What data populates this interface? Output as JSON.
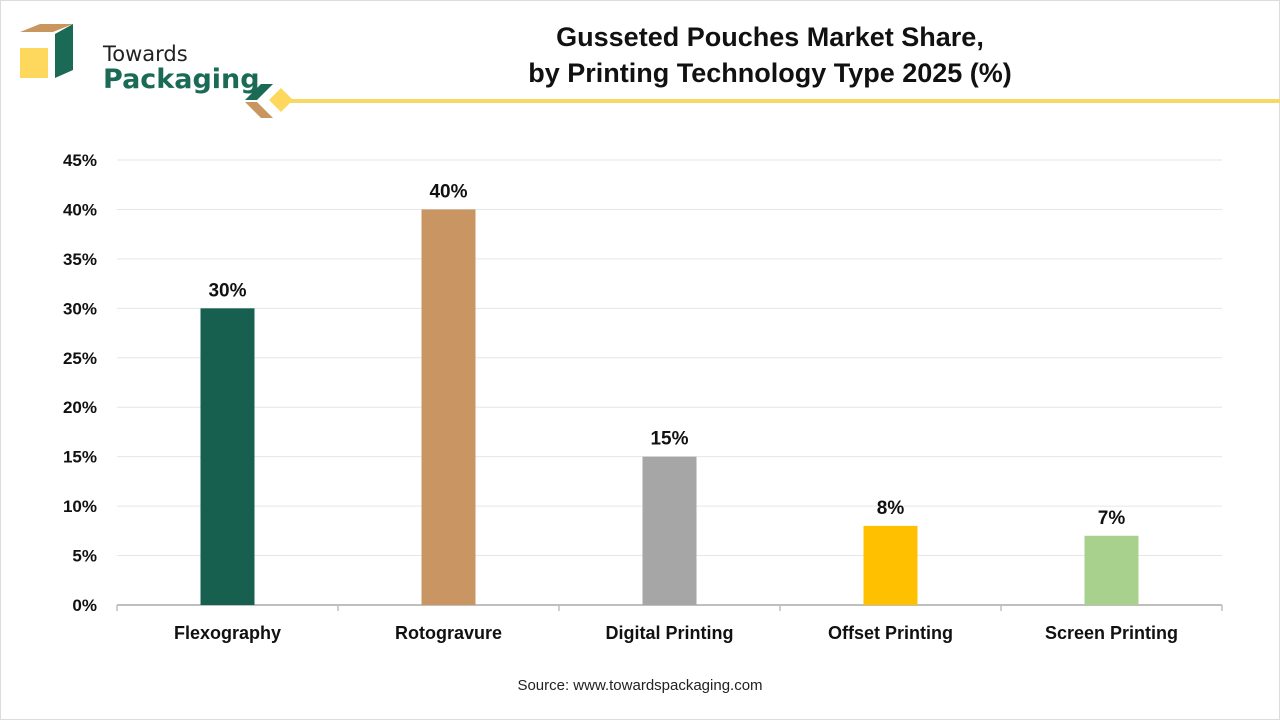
{
  "brand": {
    "line1": "Towards",
    "line2": "Packaging"
  },
  "title": {
    "line1": "Gusseted Pouches Market Share,",
    "line2": "by Printing Technology Type 2025 (%)"
  },
  "source": "Source: www.towardspackaging.com",
  "colors": {
    "accent": "#f7d862",
    "brand_green": "#1b6a55",
    "brand_tan": "#c9965f"
  },
  "chart_data": {
    "type": "bar",
    "title": "Gusseted Pouches Market Share, by Printing Technology Type 2025 (%)",
    "categories": [
      "Flexography",
      "Rotogravure",
      "Digital Printing",
      "Offset Printing",
      "Screen Printing"
    ],
    "values": [
      30,
      40,
      15,
      8,
      7
    ],
    "data_labels": [
      "30%",
      "40%",
      "15%",
      "8%",
      "7%"
    ],
    "colors": [
      "#17604f",
      "#c99562",
      "#a6a6a6",
      "#ffc000",
      "#a9d18e"
    ],
    "ylim": [
      0,
      45
    ],
    "yticks": [
      0,
      5,
      10,
      15,
      20,
      25,
      30,
      35,
      40,
      45
    ],
    "ytick_labels": [
      "0%",
      "5%",
      "10%",
      "15%",
      "20%",
      "25%",
      "30%",
      "35%",
      "40%",
      "45%"
    ],
    "grid": true,
    "legend": "none"
  }
}
